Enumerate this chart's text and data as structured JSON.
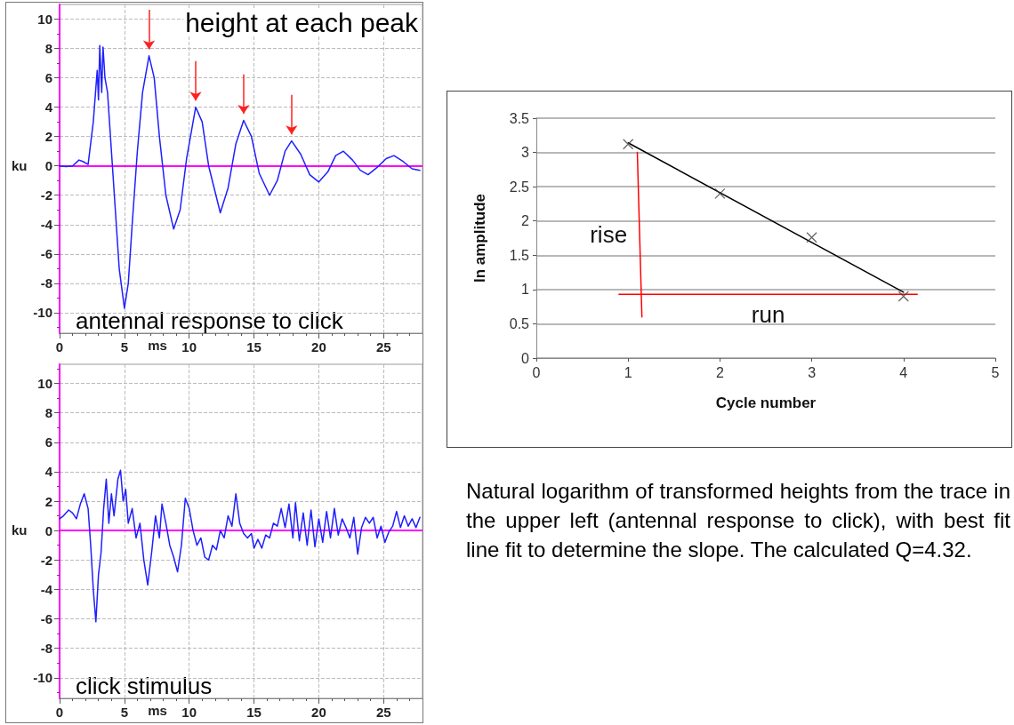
{
  "chart_data": [
    {
      "type": "line",
      "title": "antennal response to click",
      "xlabel": "ms",
      "ylabel": "ku",
      "annotations": [
        "height at each peak"
      ],
      "xlim": [
        0,
        28
      ],
      "xticks": [
        0,
        5,
        10,
        15,
        20,
        25
      ],
      "ylim": [
        -11.4,
        11
      ],
      "yticks": [
        -10,
        -8,
        -6,
        -4,
        -2,
        0,
        2,
        4,
        6,
        8,
        10
      ],
      "grid": true,
      "marker": "none",
      "line_style": "solid",
      "ref_lines": [
        {
          "axis": "y",
          "value": 0,
          "label": null,
          "color": "#ff00ff"
        }
      ],
      "x": [
        0,
        0.5,
        1,
        1.5,
        1.8,
        2.2,
        2.6,
        2.9,
        3.0,
        3.1,
        3.25,
        3.35,
        3.5,
        3.7,
        4.0,
        4.3,
        4.6,
        5.0,
        5.3,
        5.6,
        6.0,
        6.4,
        6.9,
        7.3,
        7.7,
        8.2,
        8.8,
        9.3,
        9.8,
        10.5,
        11.0,
        11.5,
        12.4,
        13.0,
        13.6,
        14.2,
        14.8,
        15.4,
        16.2,
        16.8,
        17.4,
        17.9,
        18.6,
        19.3,
        20.0,
        20.7,
        21.3,
        21.9,
        22.6,
        23.2,
        23.8,
        24.5,
        25.2,
        25.8,
        26.5,
        27.2,
        27.8
      ],
      "series": [
        {
          "color": "#1f1fff",
          "values": [
            0,
            -0.05,
            0,
            0.4,
            0.3,
            0.1,
            3,
            6.5,
            4.5,
            8.2,
            5,
            8.1,
            6,
            5,
            1,
            -3,
            -7,
            -9.7,
            -8,
            -4,
            1,
            5,
            7.5,
            6,
            2,
            -2,
            -4.3,
            -3,
            0.5,
            4,
            3,
            0,
            -3.2,
            -1.5,
            1.5,
            3.1,
            2,
            -0.5,
            -2,
            -1,
            1,
            1.7,
            0.8,
            -0.6,
            -1.1,
            -0.4,
            0.7,
            1.0,
            0.4,
            -0.3,
            -0.6,
            -0.1,
            0.5,
            0.7,
            0.3,
            -0.2,
            -0.3
          ]
        }
      ]
    },
    {
      "type": "line",
      "title": "click stimulus",
      "xlabel": "ms",
      "ylabel": "ku",
      "xlim": [
        0,
        28
      ],
      "xticks": [
        0,
        5,
        10,
        15,
        20,
        25
      ],
      "ylim": [
        -11.4,
        11.3
      ],
      "yticks": [
        -10,
        -8,
        -6,
        -4,
        -2,
        0,
        2,
        4,
        6,
        8,
        10
      ],
      "grid": true,
      "marker": "none",
      "line_style": "solid",
      "ref_lines": [
        {
          "axis": "y",
          "value": 0,
          "label": null,
          "color": "#ff00ff"
        }
      ],
      "x": [
        0,
        0.3,
        0.7,
        1.0,
        1.3,
        1.6,
        1.9,
        2.2,
        2.4,
        2.6,
        2.8,
        3.0,
        3.2,
        3.4,
        3.6,
        3.8,
        4.0,
        4.2,
        4.5,
        4.7,
        4.9,
        5.1,
        5.3,
        5.6,
        5.9,
        6.2,
        6.5,
        6.8,
        7.1,
        7.4,
        7.7,
        7.9,
        8.2,
        8.5,
        8.8,
        9.1,
        9.4,
        9.7,
        10.0,
        10.3,
        10.6,
        10.9,
        11.2,
        11.5,
        11.8,
        12.1,
        12.4,
        12.7,
        13.0,
        13.3,
        13.6,
        13.9,
        14.2,
        14.5,
        14.8,
        15.0,
        15.3,
        15.6,
        15.9,
        16.2,
        16.5,
        16.8,
        17.1,
        17.4,
        17.7,
        18.0,
        18.2,
        18.5,
        18.8,
        19.1,
        19.4,
        19.7,
        20.0,
        20.3,
        20.6,
        20.9,
        21.2,
        21.5,
        21.8,
        22.1,
        22.4,
        22.7,
        23.0,
        23.3,
        23.6,
        23.9,
        24.2,
        24.5,
        24.8,
        25.1,
        25.4,
        25.7,
        26.0,
        26.3,
        26.6,
        26.9,
        27.2,
        27.5,
        27.8
      ],
      "series": [
        {
          "color": "#1f1fff",
          "values": [
            0.8,
            1.0,
            1.4,
            1.2,
            0.8,
            1.8,
            2.5,
            1.5,
            -1,
            -4,
            -6.2,
            -3,
            -1.5,
            1.5,
            3.5,
            0.5,
            2.5,
            1,
            3.5,
            4.1,
            2,
            2.8,
            0.5,
            1.5,
            -0.5,
            0.5,
            -2,
            -3.7,
            -1.5,
            1,
            -0.5,
            1.8,
            0.5,
            -1,
            -1.8,
            -2.8,
            -1,
            2.2,
            1.5,
            0,
            -1,
            -0.5,
            -1.8,
            -2,
            -1,
            -1.3,
            0,
            -0.5,
            1,
            0.3,
            2.5,
            0.5,
            -0.2,
            -0.5,
            -0.2,
            -1.2,
            -0.6,
            -1.2,
            -0.3,
            -0.5,
            0.5,
            0.3,
            1.5,
            0.2,
            1.8,
            -0.5,
            1.9,
            -0.7,
            1.2,
            -1,
            1.4,
            -1.1,
            0.8,
            -0.8,
            1.3,
            -0.5,
            1.5,
            -0.3,
            0.8,
            0.2,
            -0.5,
            0.9,
            -1.6,
            0.2,
            0.9,
            0.5,
            0.9,
            -0.5,
            0.3,
            -0.8,
            -0.1,
            0.3,
            1.3,
            0.2,
            1.0,
            0.3,
            0.8,
            0.2,
            0.9
          ]
        }
      ]
    },
    {
      "type": "scatter",
      "xlabel": "Cycle number",
      "ylabel": "ln amplitude",
      "annotations": [
        "Natural logarithm of transformed heights from the trace in the upper left (antennal response to click), with best fit line fit to determine the slope.  The calculated Q=4.32."
      ],
      "xlim": [
        0,
        5
      ],
      "xticks": [
        0,
        1,
        2,
        3,
        4,
        5
      ],
      "ylim": [
        0,
        3.5
      ],
      "yticks": [
        0,
        0.5,
        1,
        1.5,
        2,
        2.5,
        3,
        3.5
      ],
      "grid": "y",
      "series": [
        {
          "type": "scatter",
          "marker": "cross",
          "color": "#404040",
          "x": [
            1,
            2,
            3,
            4
          ],
          "values": [
            3.12,
            2.4,
            1.76,
            0.9
          ]
        },
        {
          "type": "line",
          "color": "#000000",
          "x": [
            1,
            4
          ],
          "values": [
            3.14,
            0.96
          ]
        },
        {
          "type": "line",
          "name": "rise",
          "color": "#ff0000",
          "x": [
            1.1,
            1.15
          ],
          "values": [
            3.0,
            0.6
          ]
        },
        {
          "type": "line",
          "name": "run",
          "color": "#ff0000",
          "x": [
            0.9,
            4.15
          ],
          "values": [
            0.93,
            0.93
          ]
        }
      ]
    }
  ]
}
